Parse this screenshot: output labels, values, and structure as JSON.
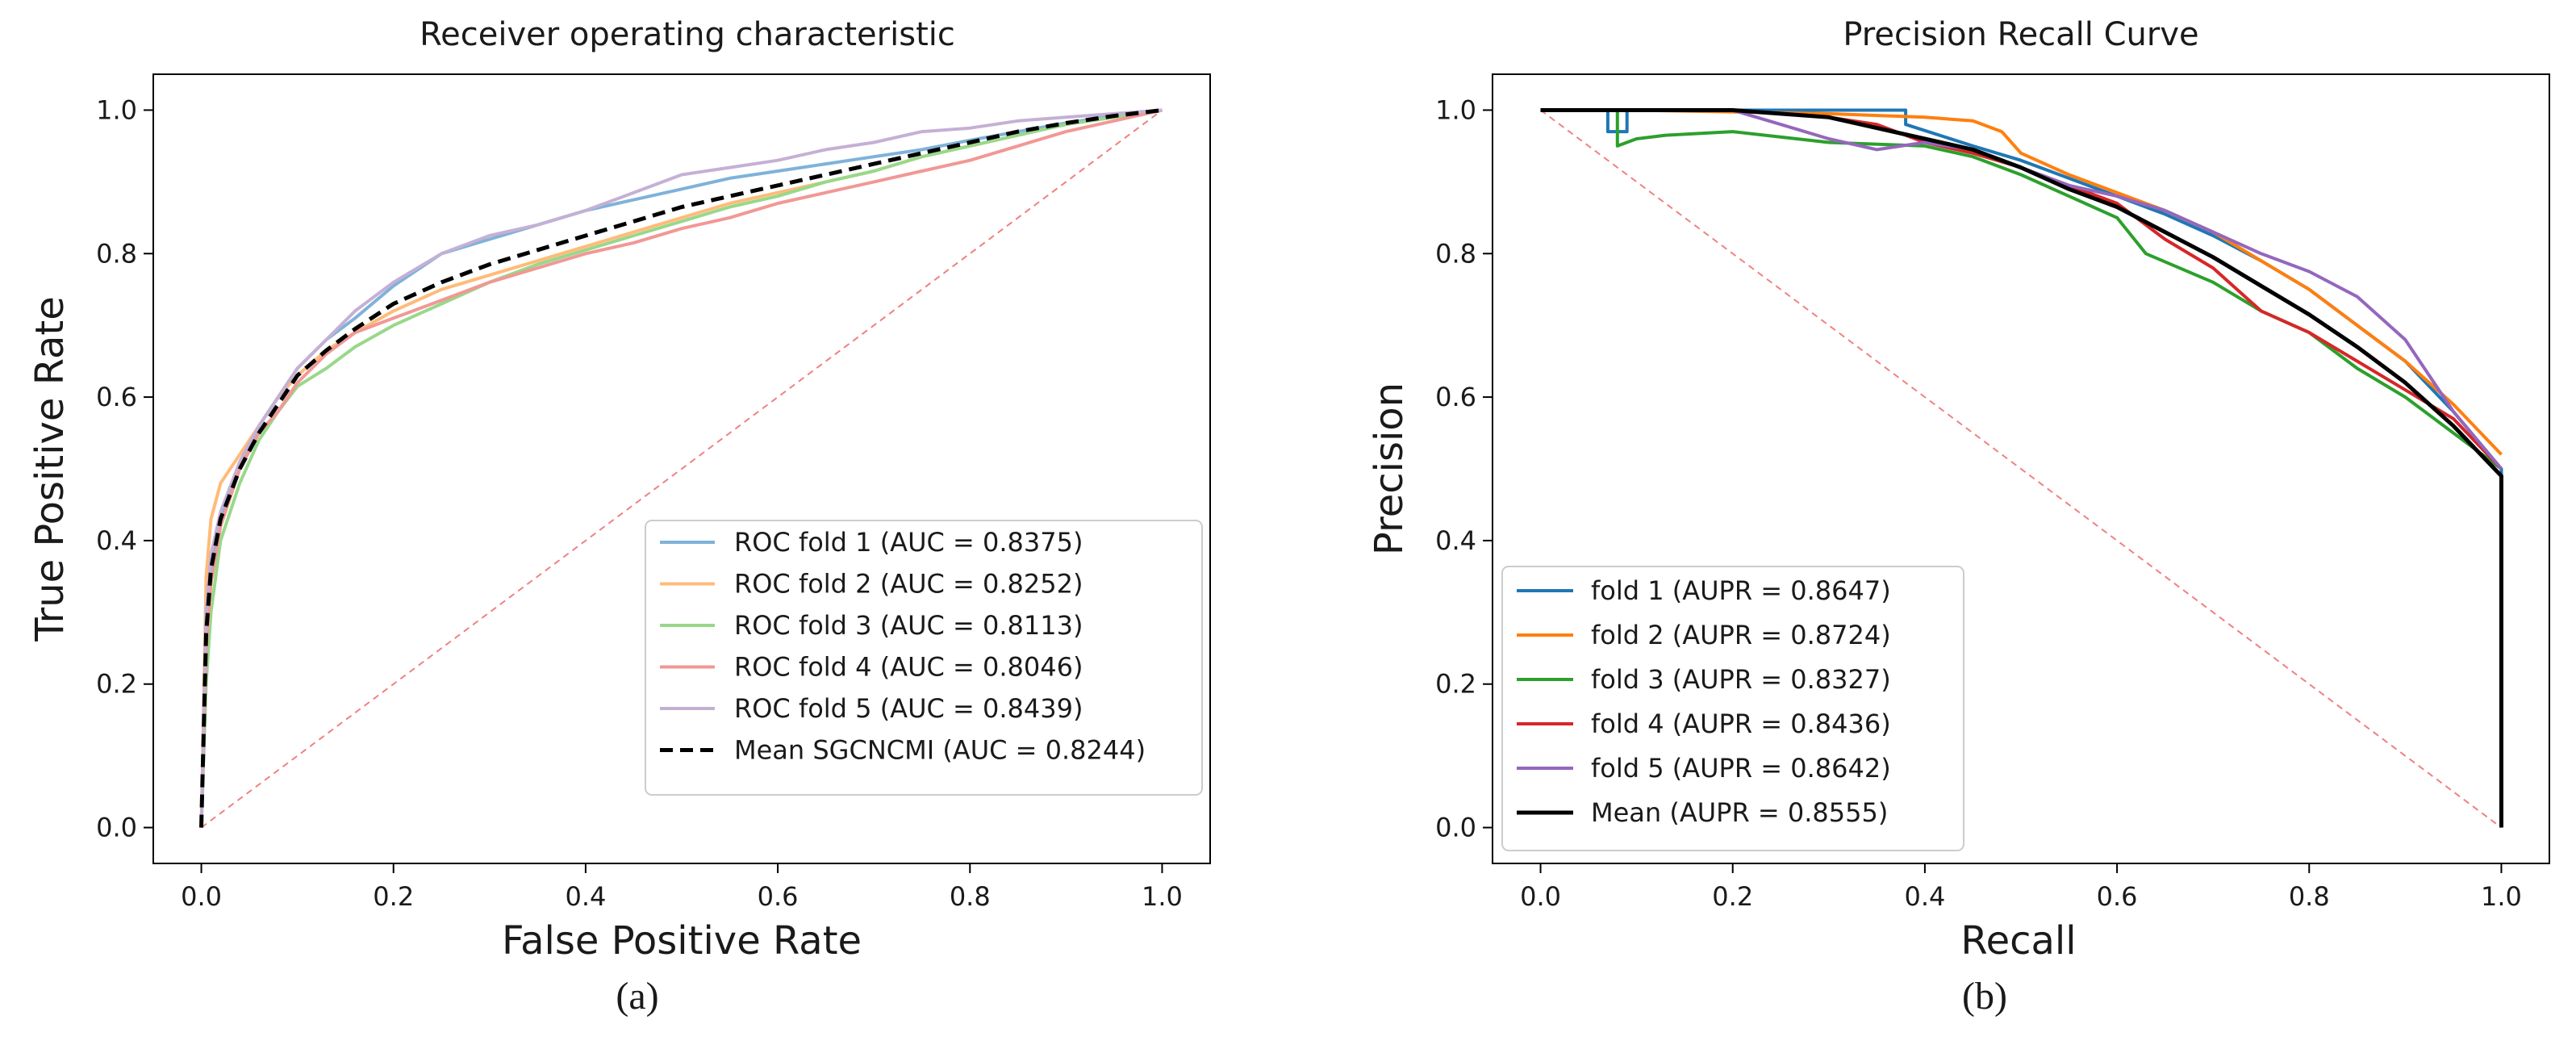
{
  "chart_data": [
    {
      "type": "line",
      "panel_caption": "(a)",
      "title": "Receiver operating characteristic",
      "xlabel": "False Positive Rate",
      "ylabel": "True Positive Rate",
      "xlim": [
        -0.05,
        1.05
      ],
      "ylim": [
        -0.05,
        1.05
      ],
      "xticks": [
        "0.0",
        "0.2",
        "0.4",
        "0.6",
        "0.8",
        "1.0"
      ],
      "yticks": [
        "0.0",
        "0.2",
        "0.4",
        "0.6",
        "0.8",
        "1.0"
      ],
      "legend_position": "lower-right",
      "reference_line": {
        "x": [
          0,
          1
        ],
        "y": [
          0,
          1
        ],
        "color": "#f08080",
        "style": "dashed"
      },
      "series": [
        {
          "name": "ROC fold 1 (AUC = 0.8375)",
          "color": "#7fb2d9",
          "style": "solid",
          "x": [
            0,
            0.005,
            0.01,
            0.02,
            0.04,
            0.06,
            0.08,
            0.1,
            0.13,
            0.16,
            0.2,
            0.25,
            0.3,
            0.35,
            0.4,
            0.45,
            0.5,
            0.55,
            0.6,
            0.65,
            0.7,
            0.75,
            0.8,
            0.85,
            0.9,
            0.95,
            1.0
          ],
          "y": [
            0,
            0.27,
            0.36,
            0.43,
            0.5,
            0.56,
            0.6,
            0.64,
            0.68,
            0.71,
            0.755,
            0.8,
            0.82,
            0.84,
            0.86,
            0.875,
            0.89,
            0.905,
            0.915,
            0.925,
            0.935,
            0.945,
            0.958,
            0.97,
            0.982,
            0.992,
            1.0
          ]
        },
        {
          "name": "ROC fold 2 (AUC = 0.8252)",
          "color": "#ffbb78",
          "style": "solid",
          "x": [
            0,
            0.005,
            0.01,
            0.02,
            0.04,
            0.06,
            0.08,
            0.1,
            0.13,
            0.16,
            0.2,
            0.25,
            0.3,
            0.35,
            0.4,
            0.45,
            0.5,
            0.55,
            0.6,
            0.65,
            0.7,
            0.75,
            0.8,
            0.85,
            0.9,
            0.95,
            1.0
          ],
          "y": [
            0,
            0.35,
            0.43,
            0.48,
            0.52,
            0.56,
            0.6,
            0.63,
            0.665,
            0.69,
            0.72,
            0.75,
            0.77,
            0.79,
            0.81,
            0.83,
            0.85,
            0.87,
            0.885,
            0.9,
            0.915,
            0.935,
            0.95,
            0.965,
            0.98,
            0.99,
            1.0
          ]
        },
        {
          "name": "ROC fold 3 (AUC = 0.8113)",
          "color": "#98d88a",
          "style": "solid",
          "x": [
            0,
            0.005,
            0.01,
            0.02,
            0.04,
            0.06,
            0.08,
            0.1,
            0.13,
            0.16,
            0.2,
            0.25,
            0.3,
            0.35,
            0.4,
            0.45,
            0.5,
            0.55,
            0.6,
            0.65,
            0.7,
            0.75,
            0.8,
            0.85,
            0.9,
            0.95,
            1.0
          ],
          "y": [
            0,
            0.2,
            0.3,
            0.4,
            0.48,
            0.54,
            0.58,
            0.615,
            0.64,
            0.67,
            0.7,
            0.73,
            0.76,
            0.785,
            0.805,
            0.825,
            0.845,
            0.865,
            0.88,
            0.9,
            0.915,
            0.935,
            0.95,
            0.965,
            0.98,
            0.99,
            1.0
          ]
        },
        {
          "name": "ROC fold 4 (AUC = 0.8046)",
          "color": "#f19895",
          "style": "solid",
          "x": [
            0,
            0.005,
            0.01,
            0.02,
            0.04,
            0.06,
            0.08,
            0.1,
            0.13,
            0.16,
            0.2,
            0.25,
            0.3,
            0.35,
            0.4,
            0.45,
            0.5,
            0.55,
            0.6,
            0.65,
            0.7,
            0.75,
            0.8,
            0.85,
            0.9,
            0.95,
            1.0
          ],
          "y": [
            0,
            0.25,
            0.34,
            0.42,
            0.5,
            0.55,
            0.58,
            0.62,
            0.66,
            0.69,
            0.71,
            0.735,
            0.76,
            0.78,
            0.8,
            0.815,
            0.835,
            0.85,
            0.87,
            0.885,
            0.9,
            0.915,
            0.93,
            0.95,
            0.97,
            0.985,
            1.0
          ]
        },
        {
          "name": "ROC fold 5 (AUC = 0.8439)",
          "color": "#c5b0d5",
          "style": "solid",
          "x": [
            0,
            0.005,
            0.01,
            0.02,
            0.04,
            0.06,
            0.08,
            0.1,
            0.13,
            0.16,
            0.2,
            0.25,
            0.3,
            0.35,
            0.4,
            0.45,
            0.5,
            0.55,
            0.6,
            0.65,
            0.7,
            0.75,
            0.8,
            0.85,
            0.9,
            0.95,
            1.0
          ],
          "y": [
            0,
            0.3,
            0.38,
            0.44,
            0.51,
            0.56,
            0.6,
            0.64,
            0.68,
            0.72,
            0.76,
            0.8,
            0.825,
            0.84,
            0.86,
            0.885,
            0.91,
            0.92,
            0.93,
            0.945,
            0.955,
            0.97,
            0.975,
            0.985,
            0.99,
            0.995,
            1.0
          ]
        },
        {
          "name": "Mean SGCNCMI (AUC = 0.8244)",
          "color": "#000000",
          "style": "dashed",
          "x": [
            0,
            0.005,
            0.01,
            0.02,
            0.04,
            0.06,
            0.08,
            0.1,
            0.13,
            0.16,
            0.2,
            0.25,
            0.3,
            0.35,
            0.4,
            0.45,
            0.5,
            0.55,
            0.6,
            0.65,
            0.7,
            0.75,
            0.8,
            0.85,
            0.9,
            0.95,
            1.0
          ],
          "y": [
            0,
            0.27,
            0.36,
            0.43,
            0.5,
            0.55,
            0.59,
            0.63,
            0.665,
            0.695,
            0.73,
            0.76,
            0.785,
            0.805,
            0.825,
            0.845,
            0.865,
            0.88,
            0.895,
            0.91,
            0.925,
            0.94,
            0.955,
            0.97,
            0.982,
            0.992,
            1.0
          ]
        }
      ]
    },
    {
      "type": "line",
      "panel_caption": "(b)",
      "title": "Precision Recall Curve",
      "xlabel": "Recall",
      "ylabel": "Precision",
      "xlim": [
        -0.05,
        1.05
      ],
      "ylim": [
        -0.05,
        1.05
      ],
      "xticks": [
        "0.0",
        "0.2",
        "0.4",
        "0.6",
        "0.8",
        "1.0"
      ],
      "yticks": [
        "0.0",
        "0.2",
        "0.4",
        "0.6",
        "0.8",
        "1.0"
      ],
      "legend_position": "lower-left",
      "reference_line": {
        "x": [
          0,
          1
        ],
        "y": [
          1,
          0
        ],
        "color": "#f08080",
        "style": "dashed"
      },
      "series": [
        {
          "name": "fold 1 (AUPR = 0.8647)",
          "color": "#1f77b4",
          "style": "solid",
          "x": [
            0,
            0.07,
            0.07,
            0.09,
            0.09,
            0.38,
            0.38,
            0.45,
            0.5,
            0.55,
            0.6,
            0.65,
            0.7,
            0.75,
            0.8,
            0.85,
            0.9,
            0.95,
            1.0,
            1.0
          ],
          "y": [
            1.0,
            1.0,
            0.97,
            0.97,
            1.0,
            1.0,
            0.98,
            0.95,
            0.93,
            0.905,
            0.88,
            0.855,
            0.825,
            0.79,
            0.75,
            0.7,
            0.65,
            0.58,
            0.5,
            0.0
          ]
        },
        {
          "name": "fold 2 (AUPR = 0.8724)",
          "color": "#ff7f0e",
          "style": "solid",
          "x": [
            0,
            0.1,
            0.3,
            0.4,
            0.45,
            0.48,
            0.5,
            0.55,
            0.6,
            0.65,
            0.7,
            0.75,
            0.8,
            0.85,
            0.9,
            0.95,
            1.0
          ],
          "y": [
            1.0,
            1.0,
            0.995,
            0.99,
            0.985,
            0.97,
            0.94,
            0.91,
            0.885,
            0.86,
            0.83,
            0.79,
            0.75,
            0.7,
            0.65,
            0.59,
            0.52
          ]
        },
        {
          "name": "fold 3 (AUPR = 0.8327)",
          "color": "#2ca02c",
          "style": "solid",
          "x": [
            0,
            0.08,
            0.08,
            0.1,
            0.13,
            0.2,
            0.3,
            0.4,
            0.45,
            0.5,
            0.55,
            0.6,
            0.63,
            0.7,
            0.75,
            0.8,
            0.85,
            0.9,
            0.95,
            1.0
          ],
          "y": [
            1.0,
            1.0,
            0.95,
            0.96,
            0.965,
            0.97,
            0.955,
            0.95,
            0.935,
            0.91,
            0.88,
            0.85,
            0.8,
            0.76,
            0.72,
            0.69,
            0.64,
            0.6,
            0.55,
            0.5
          ]
        },
        {
          "name": "fold 4 (AUPR = 0.8436)",
          "color": "#d62728",
          "style": "solid",
          "x": [
            0,
            0.2,
            0.3,
            0.35,
            0.4,
            0.45,
            0.5,
            0.55,
            0.6,
            0.63,
            0.65,
            0.7,
            0.75,
            0.8,
            0.85,
            0.9,
            0.95,
            1.0
          ],
          "y": [
            1.0,
            1.0,
            0.99,
            0.98,
            0.955,
            0.94,
            0.92,
            0.895,
            0.87,
            0.84,
            0.82,
            0.78,
            0.72,
            0.69,
            0.65,
            0.61,
            0.57,
            0.5
          ]
        },
        {
          "name": "fold 5 (AUPR = 0.8642)",
          "color": "#9467bd",
          "style": "solid",
          "x": [
            0,
            0.2,
            0.25,
            0.3,
            0.35,
            0.4,
            0.45,
            0.5,
            0.55,
            0.6,
            0.65,
            0.7,
            0.75,
            0.8,
            0.85,
            0.9,
            0.95,
            1.0
          ],
          "y": [
            1.0,
            1.0,
            0.98,
            0.96,
            0.945,
            0.955,
            0.945,
            0.92,
            0.895,
            0.88,
            0.86,
            0.83,
            0.8,
            0.775,
            0.74,
            0.68,
            0.58,
            0.5
          ]
        },
        {
          "name": "Mean (AUPR = 0.8555)",
          "color": "#000000",
          "style": "solid",
          "x": [
            0,
            0.2,
            0.3,
            0.4,
            0.45,
            0.5,
            0.55,
            0.6,
            0.65,
            0.7,
            0.75,
            0.8,
            0.85,
            0.9,
            0.95,
            1.0,
            1.0
          ],
          "y": [
            1.0,
            1.0,
            0.99,
            0.96,
            0.945,
            0.92,
            0.89,
            0.865,
            0.83,
            0.795,
            0.755,
            0.715,
            0.67,
            0.62,
            0.56,
            0.49,
            0.0
          ]
        }
      ]
    }
  ]
}
